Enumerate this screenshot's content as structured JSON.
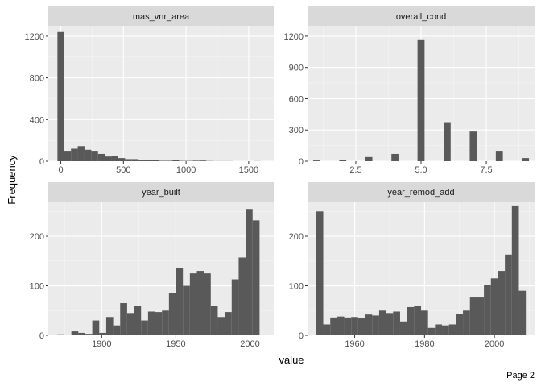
{
  "figure": {
    "x_axis_title": "value",
    "y_axis_title": "Frequency",
    "page_label": "Page 2"
  },
  "colors": {
    "panel_background": "#ebebeb",
    "grid_major": "#ffffff",
    "strip_background": "#d9d9d9",
    "bar_fill": "#595959",
    "tick_text": "#4d4d4d"
  },
  "chart_data": [
    {
      "type": "bar",
      "title": "mas_vnr_area",
      "grid": true,
      "xlim": [
        -100,
        1700
      ],
      "ylim": [
        0,
        1300
      ],
      "x_ticks": [
        0,
        500,
        1000,
        1500
      ],
      "x_tick_labels": [
        "0",
        "500",
        "1000",
        "1500"
      ],
      "y_ticks": [
        0,
        400,
        800,
        1200
      ],
      "y_tick_labels": [
        "0",
        "400",
        "800",
        "1200"
      ],
      "x": [
        0,
        54,
        108,
        162,
        216,
        270,
        324,
        378,
        432,
        486,
        540,
        594,
        648,
        702,
        756,
        810,
        864,
        918,
        972,
        1026,
        1080,
        1134,
        1188,
        1242,
        1296,
        1350,
        1404,
        1458,
        1512,
        1566
      ],
      "values": [
        1240,
        100,
        120,
        145,
        110,
        100,
        70,
        45,
        50,
        30,
        20,
        20,
        15,
        8,
        8,
        4,
        4,
        8,
        3,
        3,
        5,
        6,
        2,
        1,
        1,
        1,
        0,
        0,
        0,
        1
      ],
      "bin_width": 54
    },
    {
      "type": "bar",
      "title": "overall_cond",
      "grid": true,
      "xlim": [
        0.65,
        9.35
      ],
      "ylim": [
        0,
        1300
      ],
      "x_ticks": [
        2.5,
        5.0,
        7.5
      ],
      "x_tick_labels": [
        "2.5",
        "5.0",
        "7.5"
      ],
      "y_ticks": [
        0,
        300,
        600,
        900,
        1200
      ],
      "y_tick_labels": [
        "0",
        "300",
        "600",
        "900",
        "1200"
      ],
      "x": [
        1,
        2,
        3,
        4,
        5,
        6,
        7,
        8,
        9
      ],
      "values": [
        7,
        10,
        40,
        70,
        1170,
        375,
        285,
        100,
        30
      ],
      "bin_width": 0.27
    },
    {
      "type": "bar",
      "title": "year_built",
      "grid": true,
      "xlim": [
        1864,
        2016
      ],
      "ylim": [
        0,
        270
      ],
      "x_ticks": [
        1900,
        1950,
        2000
      ],
      "x_tick_labels": [
        "1900",
        "1950",
        "2000"
      ],
      "y_ticks": [
        0,
        100,
        200
      ],
      "y_tick_labels": [
        "0",
        "100",
        "200"
      ],
      "x": [
        1872.5,
        1877.2,
        1881.9,
        1886.6,
        1891.3,
        1896,
        1900.7,
        1905.4,
        1910.1,
        1914.8,
        1919.5,
        1924.2,
        1928.9,
        1933.6,
        1938.3,
        1943,
        1947.7,
        1952.4,
        1957.1,
        1961.8,
        1966.5,
        1971.2,
        1975.9,
        1980.6,
        1985.3,
        1990,
        1994.7,
        1999.4,
        2004.1,
        2008.8
      ],
      "values": [
        2,
        0,
        8,
        5,
        3,
        30,
        5,
        37,
        20,
        65,
        45,
        60,
        30,
        48,
        47,
        50,
        85,
        135,
        100,
        125,
        130,
        125,
        60,
        37,
        47,
        113,
        157,
        255,
        232,
        0
      ],
      "bin_width": 4.7
    },
    {
      "type": "bar",
      "title": "year_remod_add",
      "grid": true,
      "xlim": [
        1946.5,
        2011.5
      ],
      "ylim": [
        0,
        270
      ],
      "x_ticks": [
        1960,
        1980,
        2000
      ],
      "x_tick_labels": [
        "1960",
        "1980",
        "2000"
      ],
      "y_ticks": [
        0,
        100,
        200
      ],
      "y_tick_labels": [
        "0",
        "100",
        "200"
      ],
      "x": [
        1950,
        1952,
        1954,
        1956,
        1958,
        1960,
        1962,
        1964,
        1966,
        1968,
        1970,
        1972,
        1974,
        1976,
        1978,
        1980,
        1982,
        1984,
        1986,
        1988,
        1990,
        1992,
        1994,
        1996,
        1998,
        2000,
        2002,
        2004,
        2006,
        2008,
        2010
      ],
      "values": [
        250,
        22,
        36,
        38,
        36,
        37,
        35,
        42,
        40,
        50,
        45,
        48,
        28,
        57,
        60,
        50,
        15,
        22,
        20,
        22,
        43,
        50,
        78,
        78,
        102,
        115,
        130,
        163,
        262,
        90,
        0
      ],
      "bin_width": 2
    }
  ]
}
